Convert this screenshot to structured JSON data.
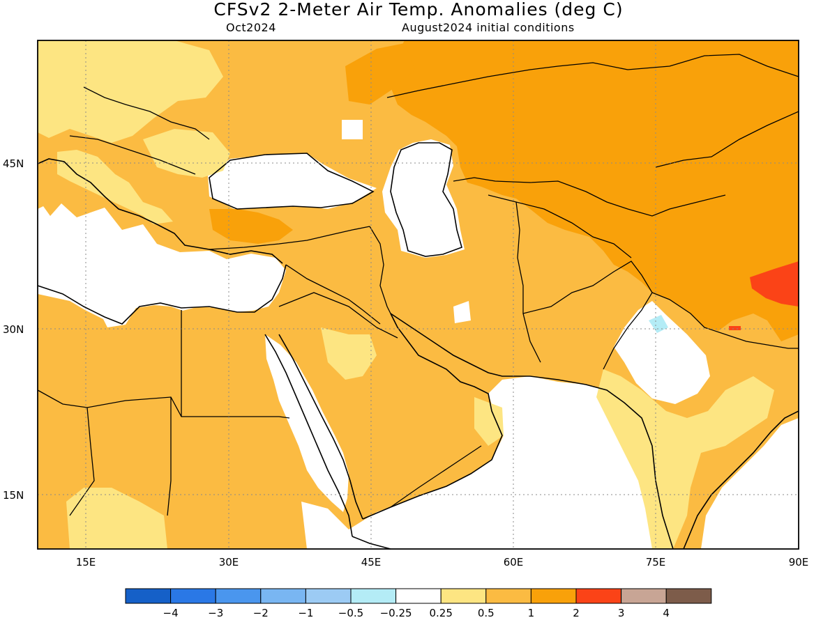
{
  "title": "CFSv2 2-Meter Air Temp. Anomalies (deg C)",
  "subtitle_left": "Oct2024",
  "subtitle_right": "August2024 initial conditions",
  "lat_labels": [
    "45N",
    "30N",
    "15N"
  ],
  "lon_labels": [
    "15E",
    "30E",
    "45E",
    "60E",
    "75E",
    "90E"
  ],
  "colorbar": {
    "labels": [
      "−4",
      "−3",
      "−2",
      "−1",
      "−0.5",
      "−0.25",
      "0.25",
      "0.5",
      "1",
      "2",
      "3",
      "4"
    ],
    "colors": [
      "#1560c8",
      "#2a78e6",
      "#4a96ee",
      "#79b6f2",
      "#9ccbf4",
      "#b4ecf6",
      "#ffffff",
      "#fde582",
      "#fbbb42",
      "#f9a10a",
      "#fb4317",
      "#c8a595",
      "#7d5c4a"
    ]
  },
  "anomaly_colors": {
    "white": "#ffffff",
    "light_yellow": "#fde582",
    "light_orange": "#fbbb42",
    "orange": "#f9a10a",
    "red": "#fb4317",
    "light_cyan": "#b4ecf6"
  }
}
